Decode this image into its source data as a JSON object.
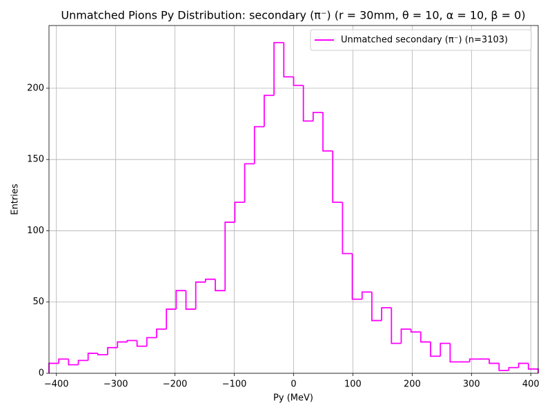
{
  "chart_data": {
    "type": "histogram",
    "title": "Unmatched Pions Py Distribution: secondary (π⁻) (r = 30mm, θ = 10, α = 10, β = 0)",
    "x_label": "Py (MeV)",
    "y_label": "Entries",
    "bins": [
      -412.5,
      -396,
      -379.5,
      -363,
      -346.5,
      -330,
      -313.5,
      -297,
      -280.5,
      -264,
      -247.5,
      -231,
      -214.5,
      -198,
      -181.5,
      -165,
      -148.5,
      -132,
      -115.5,
      -99,
      -82.5,
      -66,
      -49.5,
      -33,
      -16.5,
      0,
      16.5,
      33,
      49.5,
      66,
      82.5,
      99,
      115.5,
      132,
      148.5,
      165,
      181.5,
      198,
      214.5,
      231,
      247.5,
      264,
      280.5,
      297,
      313.5,
      330,
      346.5,
      363,
      379.5,
      396,
      412.5
    ],
    "series": [
      {
        "name": "Unmatched secondary (π⁻) (n=3103)",
        "color": "#ff00ff",
        "values": [
          7,
          10,
          6,
          9,
          14,
          13,
          18,
          22,
          23,
          19,
          25,
          31,
          45,
          58,
          45,
          64,
          66,
          58,
          106,
          120,
          147,
          173,
          195,
          232,
          208,
          202,
          177,
          183,
          156,
          120,
          84,
          52,
          57,
          37,
          46,
          21,
          31,
          29,
          22,
          12,
          21,
          8,
          8,
          10,
          10,
          7,
          2,
          4,
          7,
          3
        ]
      }
    ],
    "xlim": [
      -412.5,
      412.5
    ],
    "ylim": [
      0,
      244
    ],
    "xticks": [
      {
        "value": -400,
        "label": "−400"
      },
      {
        "value": -300,
        "label": "−300"
      },
      {
        "value": -200,
        "label": "−200"
      },
      {
        "value": -100,
        "label": "−100"
      },
      0,
      100,
      200,
      300,
      400
    ],
    "yticks": [
      0,
      50,
      100,
      150,
      200
    ],
    "grid": true,
    "legend": "upper right"
  }
}
